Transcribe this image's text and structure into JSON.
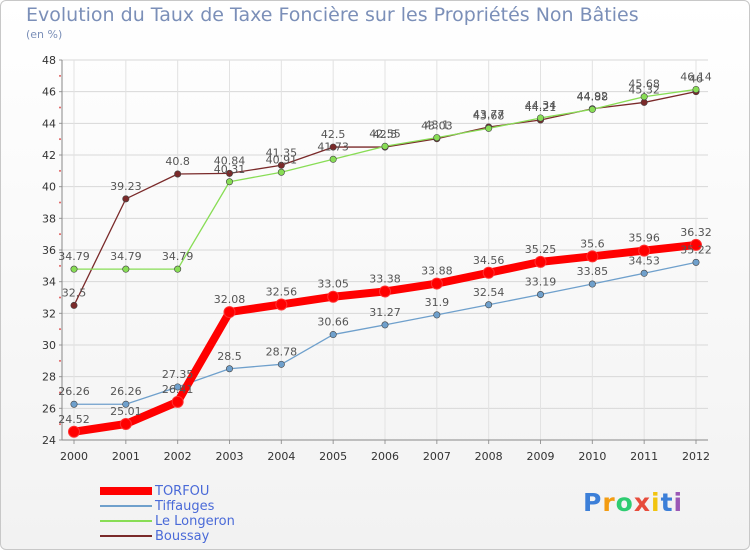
{
  "chart_data": {
    "type": "line",
    "title": "Evolution du Taux de Taxe Foncière sur les Propriétés Non Bâties",
    "subtitle": "(en %)",
    "x": [
      "2000",
      "2001",
      "2002",
      "2003",
      "2004",
      "2005",
      "2006",
      "2007",
      "2008",
      "2009",
      "2010",
      "2011",
      "2012"
    ],
    "ylim": [
      24,
      48
    ],
    "yticks": [
      24,
      26,
      28,
      30,
      32,
      34,
      36,
      38,
      40,
      42,
      44,
      46,
      48
    ],
    "grid": true,
    "legend_position": "bottom-left",
    "series": [
      {
        "name": "TORFOU",
        "color": "#ff0000",
        "values": [
          24.52,
          25.01,
          26.41,
          32.08,
          32.56,
          33.05,
          33.38,
          33.88,
          34.56,
          35.25,
          35.6,
          35.96,
          36.32
        ],
        "labels": [
          "24.52",
          "25.01",
          "26.41",
          "32.08",
          "32.56",
          "33.05",
          "33.38",
          "33.88",
          "34.56",
          "35.25",
          "35.6",
          "35.96",
          "36.32"
        ]
      },
      {
        "name": "Tiffauges",
        "color": "#6fa0cc",
        "values": [
          26.26,
          26.26,
          27.35,
          28.5,
          28.78,
          30.66,
          31.27,
          31.9,
          32.54,
          33.19,
          33.85,
          34.53,
          35.22
        ],
        "labels": [
          "26.26",
          "26.26",
          "27.35",
          "28.5",
          "28.78",
          "30.66",
          "31.27",
          "31.9",
          "32.54",
          "33.19",
          "33.85",
          "34.53",
          "35.22"
        ]
      },
      {
        "name": "Le Longeron",
        "color": "#88dd55",
        "values": [
          34.79,
          34.79,
          34.79,
          40.31,
          40.91,
          41.73,
          42.55,
          43.1,
          43.68,
          44.34,
          44.88,
          45.68,
          46.14
        ],
        "labels": [
          "34.79",
          "34.79",
          "34.79",
          "40.31",
          "40.91",
          "41.73",
          "42.55",
          "43.1",
          "43.68",
          "44.34",
          "44.88",
          "45.68",
          "46.14"
        ]
      },
      {
        "name": "Boussay",
        "color": "#7a2a2a",
        "values": [
          32.5,
          39.23,
          40.8,
          40.84,
          41.35,
          42.5,
          42.5,
          43.03,
          43.77,
          44.21,
          44.92,
          45.32,
          46.0
        ],
        "labels": [
          "32.5",
          "39.23",
          "40.8",
          "40.84",
          "41.35",
          "42.5",
          "42.5",
          "43.03",
          "43.77",
          "44.21",
          "44.92",
          "45.32",
          "46"
        ]
      }
    ]
  },
  "logo": {
    "letters": [
      "P",
      "r",
      "o",
      "x",
      "i",
      "t",
      "i"
    ],
    "colors": [
      "#3c7fd8",
      "#f39c12",
      "#2ecc71",
      "#e74c3c",
      "#f1c40f",
      "#3c7fd8",
      "#9b59b6"
    ]
  }
}
